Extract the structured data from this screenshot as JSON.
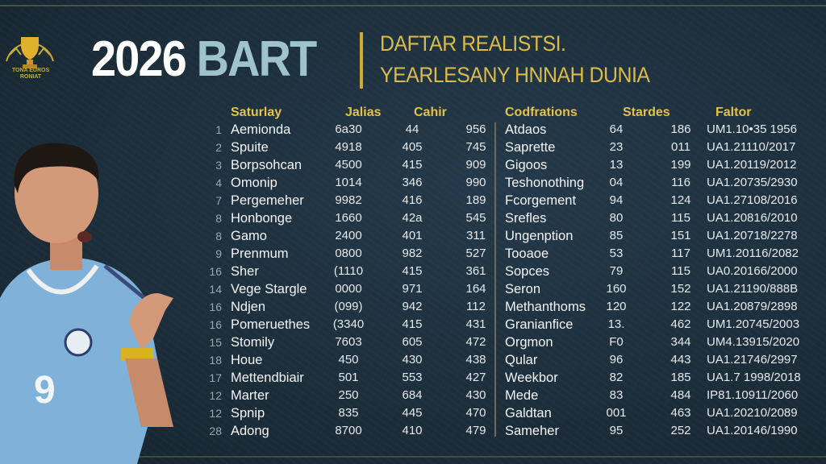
{
  "logo": {
    "name": "trophy-logo",
    "text_line1": "TONA EUROS",
    "text_line2": "RONIAT"
  },
  "header": {
    "title_year": "2026",
    "title_word": "BART",
    "subtitle_line1": "DAFTAR REALISTSI.",
    "subtitle_line2": "YEARLESANY HNNAH DUNIA"
  },
  "colors": {
    "background": "#1c2e3b",
    "gold": "#dcbb4c",
    "title_blue": "#9fc3cc",
    "jersey": "#7fb1d9"
  },
  "left_table": {
    "headers": [
      "Saturlay",
      "Jalias",
      "Cahir"
    ],
    "rows": [
      [
        "1",
        "Aemionda",
        "6a30",
        "44",
        "956"
      ],
      [
        "2",
        "Spuite",
        "4918",
        "405",
        "745"
      ],
      [
        "3",
        "Borpsohcan",
        "4500",
        "415",
        "909"
      ],
      [
        "4",
        "Omonip",
        "1014",
        "346",
        "990"
      ],
      [
        "7",
        "Pergemeher",
        "9982",
        "416",
        "189"
      ],
      [
        "8",
        "Honbonge",
        "1660",
        "42a",
        "545"
      ],
      [
        "8",
        "Gamo",
        "2400",
        "401",
        "311"
      ],
      [
        "9",
        "Prenmum",
        "0800",
        "982",
        "527"
      ],
      [
        "16",
        "Sher",
        "(1110",
        "415",
        "361"
      ],
      [
        "14",
        "Vege Stargle",
        "0000",
        "971",
        "164"
      ],
      [
        "16",
        "Ndjen",
        "(099)",
        "942",
        "112"
      ],
      [
        "16",
        "Pomeruethes",
        "(3340",
        "415",
        "431"
      ],
      [
        "15",
        "Stomily",
        "7603",
        "605",
        "472"
      ],
      [
        "18",
        "Houe",
        "450",
        "430",
        "438"
      ],
      [
        "17",
        "Mettendbiair",
        "501",
        "553",
        "427"
      ],
      [
        "12",
        "Marter",
        "250",
        "684",
        "430"
      ],
      [
        "12",
        "Spnip",
        "835",
        "445",
        "470"
      ],
      [
        "28",
        "Adong",
        "8700",
        "410",
        "479"
      ]
    ]
  },
  "right_table": {
    "headers": [
      "Codfrations",
      "Stardes",
      "Faltor"
    ],
    "rows": [
      [
        "Atdaos",
        "64",
        "186",
        "UM1.10•35 1956"
      ],
      [
        "Saprette",
        "23",
        "011",
        "UA1.21110/2017"
      ],
      [
        "Gigoos",
        "13",
        "199",
        "UA1.20119/2012"
      ],
      [
        "Teshonothing",
        "04",
        "116",
        "UA1.20735/2930"
      ],
      [
        "Fcorgement",
        "94",
        "124",
        "UA1.27108/2016"
      ],
      [
        "Srefles",
        "80",
        "115",
        "UA1.20816/2010"
      ],
      [
        "Ungenption",
        "85",
        "151",
        "UA1.20718/2278"
      ],
      [
        "Tooaoe",
        "53",
        "117",
        "UM1.20116/2082"
      ],
      [
        "Sopces",
        "79",
        "115",
        "UA0.20166/2000"
      ],
      [
        "Seron",
        "160",
        "152",
        "UA1.21190/888B"
      ],
      [
        "Methanthoms",
        "120",
        "122",
        "UA1.20879/2898"
      ],
      [
        "Granianfice",
        "13.",
        "462",
        "UM1.20745/2003"
      ],
      [
        "Orgmon",
        "F0",
        "344",
        "UM4.13915/2020"
      ],
      [
        "Qular",
        "96",
        "443",
        "UA1.21746/2997"
      ],
      [
        "Weekbor",
        "82",
        "185",
        "UA1.7 1998/2018"
      ],
      [
        "Mede",
        "83",
        "484",
        "IP81.10911/2060"
      ],
      [
        "Galdtan",
        "001",
        "463",
        "UA1.20210/2089"
      ],
      [
        "Sameher",
        "95",
        "252",
        "UA1.20146/1990"
      ]
    ]
  },
  "player": {
    "jersey_number": "9"
  }
}
